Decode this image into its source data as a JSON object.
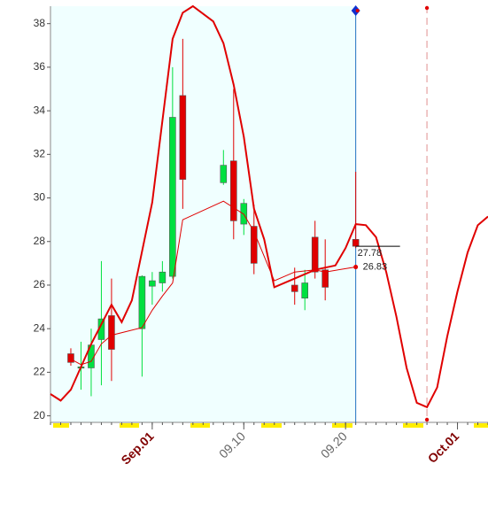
{
  "chart_data": {
    "type": "candlestick",
    "x": [
      -8,
      -7,
      -6,
      -5,
      -4,
      -1,
      0,
      1,
      2,
      3,
      7,
      8,
      9,
      10,
      14,
      15,
      16,
      17,
      20
    ],
    "open": [
      22.85,
      22.2,
      22.2,
      23.5,
      24.6,
      24.0,
      25.95,
      26.1,
      26.4,
      34.7,
      30.7,
      31.7,
      28.8,
      28.7,
      26.0,
      25.4,
      28.2,
      26.7,
      28.1
    ],
    "high": [
      23.1,
      23.4,
      24.0,
      27.1,
      26.3,
      26.45,
      26.6,
      27.1,
      36.0,
      37.3,
      32.2,
      35.0,
      29.95,
      29.7,
      26.8,
      26.7,
      28.95,
      28.1,
      31.2
    ],
    "low": [
      22.3,
      21.2,
      20.9,
      21.4,
      21.6,
      21.8,
      25.1,
      25.7,
      26.3,
      29.5,
      30.6,
      28.1,
      28.3,
      26.5,
      25.1,
      24.85,
      26.3,
      25.3,
      27.7
    ],
    "close": [
      22.45,
      22.25,
      23.25,
      24.45,
      23.05,
      26.4,
      26.2,
      26.6,
      33.7,
      30.85,
      31.5,
      28.95,
      29.75,
      27.0,
      25.7,
      26.1,
      26.6,
      25.9,
      27.78
    ],
    "up_color": "#00e040",
    "down_color": "#e00000",
    "lines": [
      {
        "color": "#e00000",
        "x": [
          -10,
          -9,
          -8,
          -6,
          -4,
          -3,
          -2,
          0,
          2,
          3,
          4,
          6,
          7,
          8,
          9,
          10,
          11,
          12,
          14,
          16,
          18,
          19,
          20,
          21,
          22,
          23,
          24,
          25,
          26,
          27,
          28,
          29,
          30,
          31,
          32,
          33
        ],
        "values": [
          21.0,
          20.7,
          21.2,
          23.3,
          25.1,
          24.3,
          25.3,
          29.8,
          37.3,
          38.5,
          38.8,
          38.1,
          37.1,
          35.2,
          32.8,
          29.5,
          28.1,
          25.9,
          26.3,
          26.7,
          26.9,
          27.7,
          28.8,
          28.75,
          28.2,
          26.6,
          24.55,
          22.2,
          20.6,
          20.4,
          21.3,
          23.65,
          25.7,
          27.5,
          28.75,
          29.15
        ]
      },
      {
        "color": "#e00000",
        "x": [
          -8,
          -7,
          -6,
          -5,
          -4,
          -1,
          0,
          1,
          2,
          3,
          7,
          8,
          9,
          10,
          12,
          14,
          16,
          17,
          20
        ],
        "values": [
          22.6,
          22.35,
          22.5,
          23.3,
          23.7,
          24.05,
          24.85,
          25.5,
          26.1,
          29.0,
          29.85,
          29.55,
          29.25,
          28.45,
          26.2,
          26.6,
          26.7,
          26.6,
          26.83
        ]
      }
    ],
    "markers": [
      {
        "x": 20,
        "color": "#1e70c0"
      },
      {
        "x": 27,
        "color": "#e09090"
      }
    ],
    "xlim": [
      -10,
      33
    ],
    "xticks": [
      {
        "value": 0,
        "label": "Sep.01"
      },
      {
        "value": 9,
        "label": "09.10"
      },
      {
        "value": 19,
        "label": "09.20"
      },
      {
        "value": 30,
        "label": "Oct.01"
      }
    ],
    "ylim": [
      19.7,
      38.8
    ],
    "yticks": [
      20,
      22,
      24,
      26,
      28,
      30,
      32,
      34,
      36,
      38
    ],
    "background": "#f0ffff"
  }
}
